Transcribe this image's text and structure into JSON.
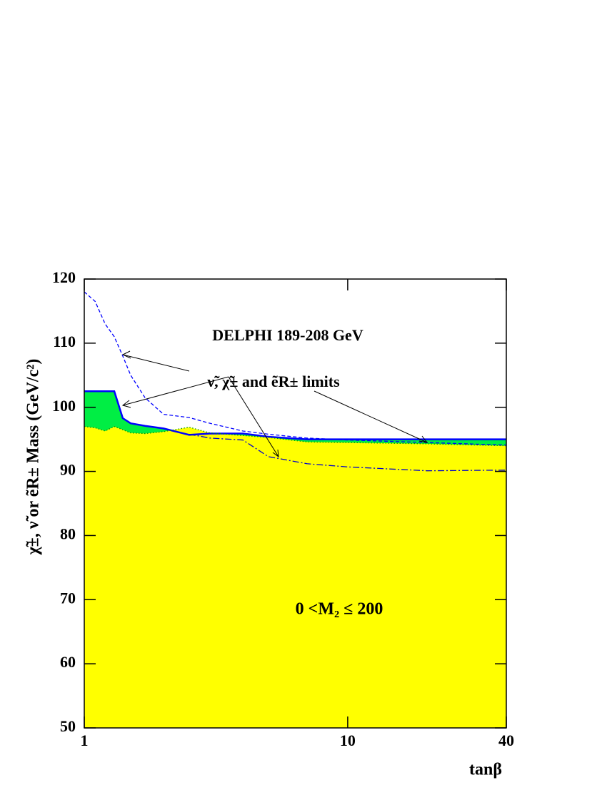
{
  "chart_data": {
    "type": "area",
    "title": "DELPHI 189-208 GeV",
    "annotations": [
      "ν̃,  χ̃± and ẽR± limits",
      "0 <M₂ ≤ 200"
    ],
    "x_label": "tanβ",
    "y_label": "χ̃±, ν̃ or ẽR± Mass (GeV/c²)",
    "xscale": "log",
    "xlim": [
      1,
      40
    ],
    "xticks": [
      1,
      10,
      40
    ],
    "ylim": [
      50,
      120
    ],
    "yticks": [
      50,
      60,
      70,
      80,
      90,
      100,
      110,
      120
    ],
    "x": [
      1,
      1.1,
      1.2,
      1.3,
      1.4,
      1.5,
      1.7,
      2,
      2.5,
      3,
      4,
      5,
      7,
      10,
      20,
      40
    ],
    "series": [
      {
        "color": "#0000ff",
        "fill": "#00ee44",
        "style": "solid",
        "values": [
          102.5,
          102.5,
          102.5,
          102.5,
          98.3,
          97.5,
          97.1,
          96.7,
          95.7,
          95.9,
          95.9,
          95.4,
          95.0,
          95.0,
          95.0,
          95.0
        ]
      },
      {
        "color": "#009900",
        "fill": "#ffff00",
        "style": "dotted",
        "values": [
          97,
          96.8,
          96.3,
          97,
          96.5,
          96,
          95.9,
          96.2,
          96.9,
          96,
          95.6,
          95.3,
          94.6,
          94.5,
          94.3,
          94
        ]
      },
      {
        "color": "#0000ff",
        "style": "dashed",
        "values": [
          118,
          116.5,
          113,
          111,
          108,
          105,
          101.5,
          98.9,
          98.4,
          97.5,
          96.3,
          95.8,
          95.2,
          94.9,
          94.5,
          94.1
        ]
      },
      {
        "color": "#0000cc",
        "style": "dashdot",
        "values": [
          null,
          null,
          null,
          null,
          null,
          null,
          null,
          null,
          95.8,
          95.2,
          94.9,
          92.3,
          91.2,
          90.7,
          90.1,
          90.2
        ]
      }
    ]
  }
}
